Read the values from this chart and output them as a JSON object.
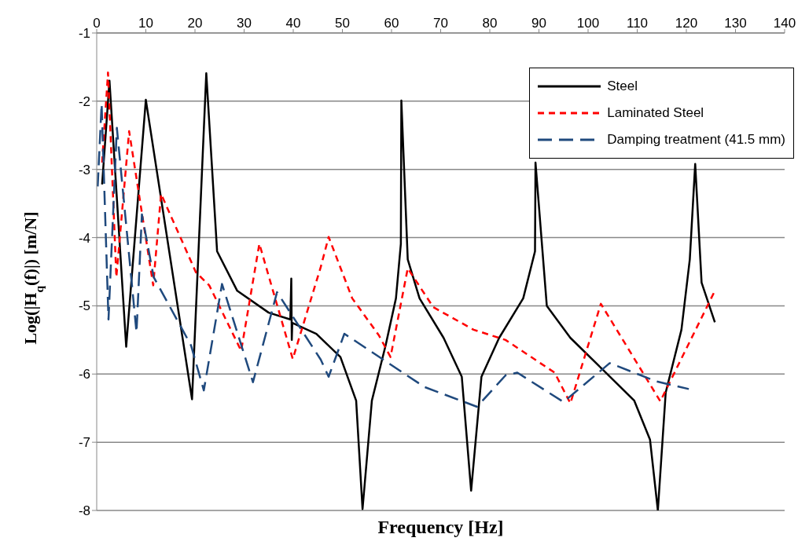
{
  "chart_data": {
    "type": "line",
    "xlabel": "Frequency [Hz]",
    "ylabel": "Log(|H$_{q}$(f)|) [m/N]",
    "xlim": [
      0,
      140
    ],
    "xticks": [
      0,
      10,
      20,
      30,
      40,
      50,
      60,
      70,
      80,
      90,
      100,
      110,
      120,
      130,
      140
    ],
    "ylim": [
      -8,
      -1
    ],
    "yticks": [
      -8,
      -7,
      -6,
      -5,
      -4,
      -3,
      -2,
      -1
    ],
    "grid": "y",
    "legend": "top right",
    "marker": "none",
    "series": [
      {
        "name": "Steel",
        "color": "#000000",
        "line_style": "solid",
        "x": [
          1.1,
          2.6,
          6.0,
          10.0,
          19.4,
          22.3,
          24.5,
          28.6,
          35,
          39.4,
          39.6,
          39.7,
          39.8,
          44.7,
          49.6,
          52.8,
          54.1,
          56,
          58.8,
          60.9,
          61.9,
          62.0,
          63.3,
          65.7,
          70.6,
          74.3,
          76.2,
          78.3,
          81.9,
          86.8,
          89.2,
          89.3,
          91.6,
          96.4,
          102.9,
          109.4,
          112.6,
          114.2,
          115.8,
          119,
          120.7,
          121.8,
          123.1,
          125.8
        ],
        "values": [
          -3.22,
          -1.7,
          -5.6,
          -1.98,
          -6.37,
          -1.59,
          -4.2,
          -4.78,
          -5.1,
          -5.2,
          -4.6,
          -5.5,
          -5.25,
          -5.41,
          -5.75,
          -6.39,
          -7.98,
          -6.39,
          -5.58,
          -4.89,
          -4.09,
          -1.99,
          -4.32,
          -4.89,
          -5.47,
          -6.04,
          -7.71,
          -6.04,
          -5.47,
          -4.89,
          -4.2,
          -2.9,
          -5.0,
          -5.47,
          -5.93,
          -6.39,
          -6.96,
          -8.0,
          -6.27,
          -5.35,
          -4.32,
          -2.92,
          -4.66,
          -5.24
        ]
      },
      {
        "name": "Laminated Steel",
        "color": "#ff0000",
        "line_style": "dashed",
        "x": [
          1.1,
          2.3,
          4.0,
          6.6,
          11.5,
          13.1,
          20.2,
          22.9,
          29.4,
          33.1,
          39.9,
          45.6,
          47.2,
          52,
          57.4,
          59.8,
          63.3,
          68.5,
          76.7,
          83.2,
          93.2,
          96.4,
          102.6,
          114.7,
          125.8
        ],
        "values": [
          -2.9,
          -1.58,
          -4.58,
          -2.44,
          -4.7,
          -3.36,
          -4.51,
          -4.7,
          -5.66,
          -4.09,
          -5.78,
          -4.43,
          -3.99,
          -4.89,
          -5.43,
          -5.75,
          -4.45,
          -5.02,
          -5.35,
          -5.5,
          -5.98,
          -6.43,
          -4.97,
          -6.4,
          -4.78
        ]
      },
      {
        "name": "Damping treatment (41.5 mm)",
        "color": "#1f497d",
        "line_style": "dashed",
        "x": [
          0.2,
          1.0,
          2.4,
          4.1,
          8.1,
          9.2,
          11.6,
          19.2,
          21.8,
          25.5,
          31.8,
          36.7,
          45.6,
          47.2,
          50.4,
          66.7,
          77.4,
          83.2,
          85.6,
          95,
          104.4,
          114,
          120.5
        ],
        "values": [
          -3.25,
          -2.04,
          -5.2,
          -2.39,
          -5.39,
          -3.66,
          -4.58,
          -5.58,
          -6.24,
          -4.68,
          -6.12,
          -4.8,
          -5.79,
          -6.04,
          -5.41,
          -6.19,
          -6.48,
          -6.02,
          -5.98,
          -6.41,
          -5.84,
          -6.11,
          -6.22
        ]
      }
    ]
  }
}
